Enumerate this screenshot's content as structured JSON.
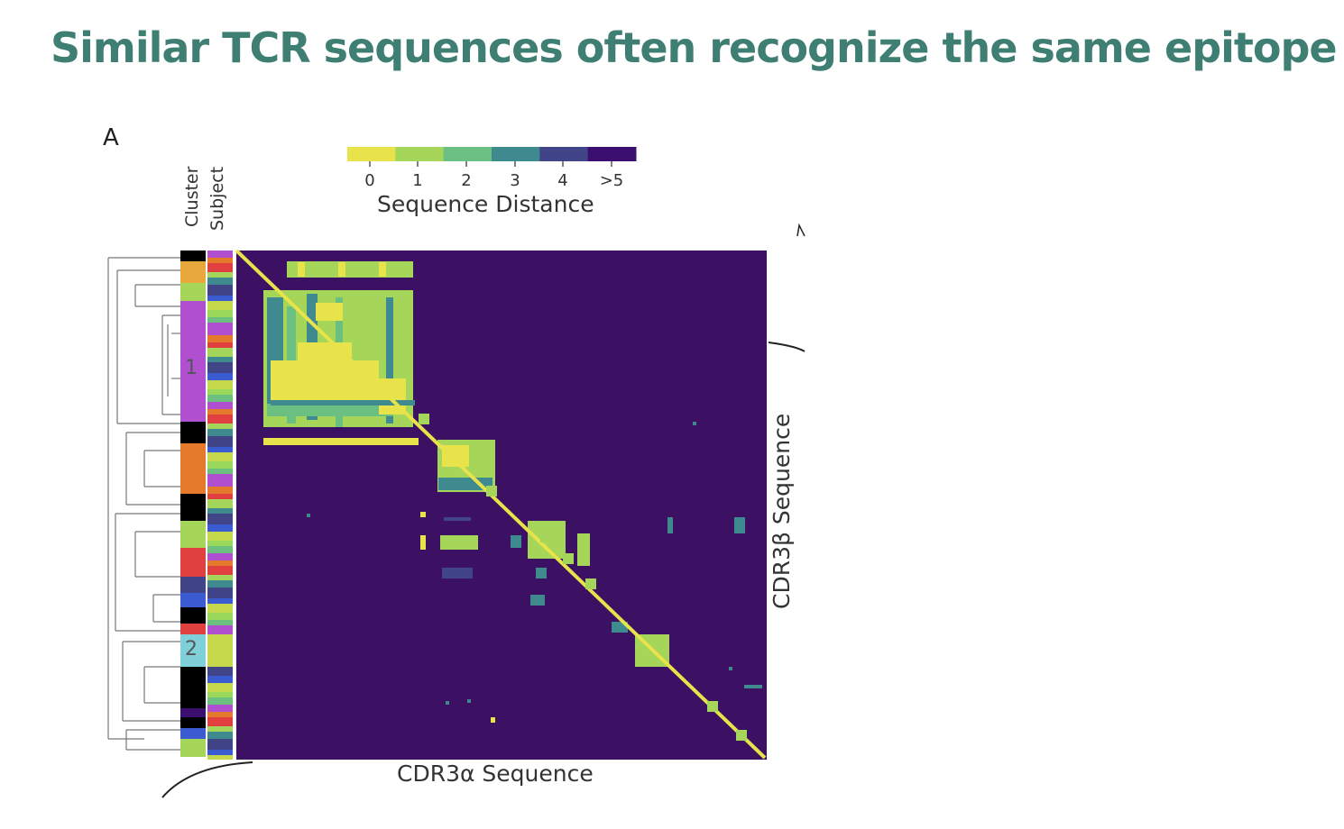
{
  "slide": {
    "title": "Similar TCR sequences often recognize the same epitope",
    "title_color": "#3f7f73"
  },
  "chart_data": {
    "type": "heatmap",
    "panel_label": "A",
    "xlabel": "CDR3α Sequence",
    "ylabel": "CDR3β Sequence",
    "row_annotation_labels": [
      "Cluster",
      "Subject"
    ],
    "cluster_labels": [
      "1",
      "2"
    ],
    "colorbar": {
      "label": "Sequence Distance",
      "ticks": [
        "0",
        "1",
        "2",
        "3",
        "4",
        ">5"
      ],
      "colors": [
        "#e8e34a",
        "#a5d65a",
        "#6bbf80",
        "#3e8a8e",
        "#414487",
        "#3b0f70",
        "#2f0c56"
      ]
    },
    "background_color": "#3c1063",
    "diagonal_value": 0,
    "blocks": [
      {
        "name": "cluster-1",
        "distance": 0.5
      },
      {
        "name": "cluster-orange",
        "distance": 1.5
      },
      {
        "name": "cluster-2",
        "distance": 1
      }
    ]
  }
}
